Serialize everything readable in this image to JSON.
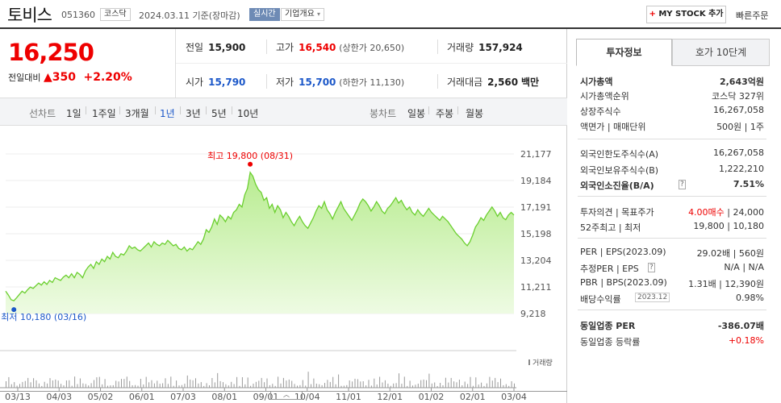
{
  "header": {
    "name": "토비스",
    "code": "051360",
    "market": "코스닥",
    "date": "2024.03.11",
    "date_basis": "기준(장마감)",
    "live": "실시간",
    "company": "기업개요",
    "mystock_plus": "+",
    "mystock": "MY STOCK 추가",
    "quick": "빠른주문"
  },
  "price": {
    "current": "16,250",
    "prev_label": "전일대비",
    "change": "350",
    "change_pct": "+2.20%"
  },
  "quotes": {
    "prev": {
      "label": "전일",
      "value": "15,900"
    },
    "high": {
      "label": "고가",
      "value": "16,540",
      "sub": "(상한가 20,650)"
    },
    "volume": {
      "label": "거래량",
      "value": "157,924"
    },
    "open": {
      "label": "시가",
      "value": "15,790"
    },
    "low": {
      "label": "저가",
      "value": "15,700",
      "sub": "(하한가 11,130)"
    },
    "amount": {
      "label": "거래대금",
      "value": "2,560",
      "unit": "백만"
    }
  },
  "tabs": {
    "line_label": "선차트",
    "periods": [
      "1일",
      "1주일",
      "3개월",
      "1년",
      "3년",
      "5년",
      "10년"
    ],
    "active": "1년",
    "candle_label": "봉차트",
    "candles": [
      "일봉",
      "주봉",
      "월봉"
    ]
  },
  "chart_data": {
    "type": "area",
    "y_ticks": [
      "21,177",
      "19,184",
      "17,191",
      "15,198",
      "13,204",
      "11,211",
      "9,218"
    ],
    "ylim": [
      9218,
      21177
    ],
    "x_ticks": [
      "03/13",
      "04/03",
      "05/02",
      "06/01",
      "07/03",
      "08/01",
      "09/01",
      "10/04",
      "11/01",
      "12/01",
      "01/02",
      "02/01",
      "03/04"
    ],
    "high_label": "최고 19,800 (08/31)",
    "low_label": "최저 10,180 (03/16)",
    "volume_label": "거래량",
    "prices": [
      10900,
      10600,
      10250,
      10180,
      10400,
      10650,
      10900,
      10750,
      11000,
      11200,
      11100,
      11300,
      11500,
      11350,
      11600,
      11400,
      11700,
      11550,
      11900,
      11800,
      11700,
      11950,
      12100,
      11900,
      12200,
      11900,
      12300,
      12150,
      11900,
      12400,
      12700,
      12900,
      12600,
      13100,
      12900,
      13300,
      13100,
      13500,
      13300,
      13800,
      13500,
      13400,
      13700,
      13600,
      13900,
      14300,
      14100,
      14200,
      14000,
      13900,
      14100,
      14300,
      14500,
      14200,
      14600,
      14400,
      14300,
      14500,
      14400,
      14700,
      14500,
      14300,
      14400,
      14100,
      14000,
      14200,
      13900,
      14100,
      14000,
      14300,
      14600,
      14400,
      14800,
      15500,
      15300,
      15700,
      16300,
      15900,
      16600,
      16400,
      16100,
      16500,
      16300,
      16800,
      17000,
      17400,
      17200,
      18100,
      18600,
      19800,
      19500,
      18900,
      18500,
      18300,
      17700,
      17900,
      17100,
      17400,
      16800,
      17300,
      17000,
      16400,
      16800,
      16500,
      16100,
      15800,
      16200,
      16500,
      16100,
      15800,
      15600,
      16000,
      16400,
      16900,
      17300,
      17100,
      17600,
      17000,
      16700,
      16300,
      16800,
      17200,
      17600,
      17100,
      16800,
      16500,
      16200,
      16600,
      17000,
      17500,
      17800,
      17600,
      17300,
      16900,
      17200,
      17600,
      17300,
      16900,
      16700,
      17100,
      17300,
      17600,
      17900,
      17500,
      17700,
      17300,
      17000,
      17200,
      16800,
      16600,
      17000,
      16700,
      16500,
      16800,
      17100,
      16800,
      16600,
      16400,
      16200,
      16500,
      16300,
      16100,
      15800,
      15500,
      15200,
      15000,
      14800,
      14500,
      14300,
      14600,
      15100,
      15700,
      16000,
      16400,
      16200,
      16600,
      16900,
      17200,
      16900,
      16500,
      16800,
      16400,
      16250,
      16600,
      16800,
      16600
    ]
  },
  "info": {
    "tab_active": "투자정보",
    "tab_other": "호가 10단계",
    "r1": {
      "l": "시가총액",
      "v": "2,643억원"
    },
    "r2": {
      "l": "시가총액순위",
      "v": "코스닥 327위"
    },
    "r3": {
      "l": "상장주식수",
      "v": "16,267,058"
    },
    "r4": {
      "l": "액면가 | 매매단위",
      "v": "500원 | 1주"
    },
    "r5": {
      "l": "외국인한도주식수(A)",
      "v": "16,267,058"
    },
    "r6": {
      "l": "외국인보유주식수(B)",
      "v": "1,222,210"
    },
    "r7": {
      "l": "외국인소진율(B/A)",
      "v": "7.51%"
    },
    "r8": {
      "l": "투자의견 | 목표주가",
      "v1": "4.00매수",
      "v2": "| 24,000"
    },
    "r9": {
      "l": "52주최고 | 최저",
      "v": "19,800 | 10,180"
    },
    "r10": {
      "l": "PER | EPS(2023.09)",
      "v": "29.02배 | 560원"
    },
    "r11": {
      "l": "추정PER | EPS",
      "v": "N/A | N/A"
    },
    "r12": {
      "l": "PBR | BPS(2023.09)",
      "v": "1.31배 | 12,390원"
    },
    "r13": {
      "l": "배당수익률",
      "l2": "2023.12",
      "v": "0.98%"
    },
    "r14": {
      "l": "동일업종 PER",
      "v": "-386.07배"
    },
    "r15": {
      "l": "동일업종 등락률",
      "v": "+0.18%"
    }
  }
}
